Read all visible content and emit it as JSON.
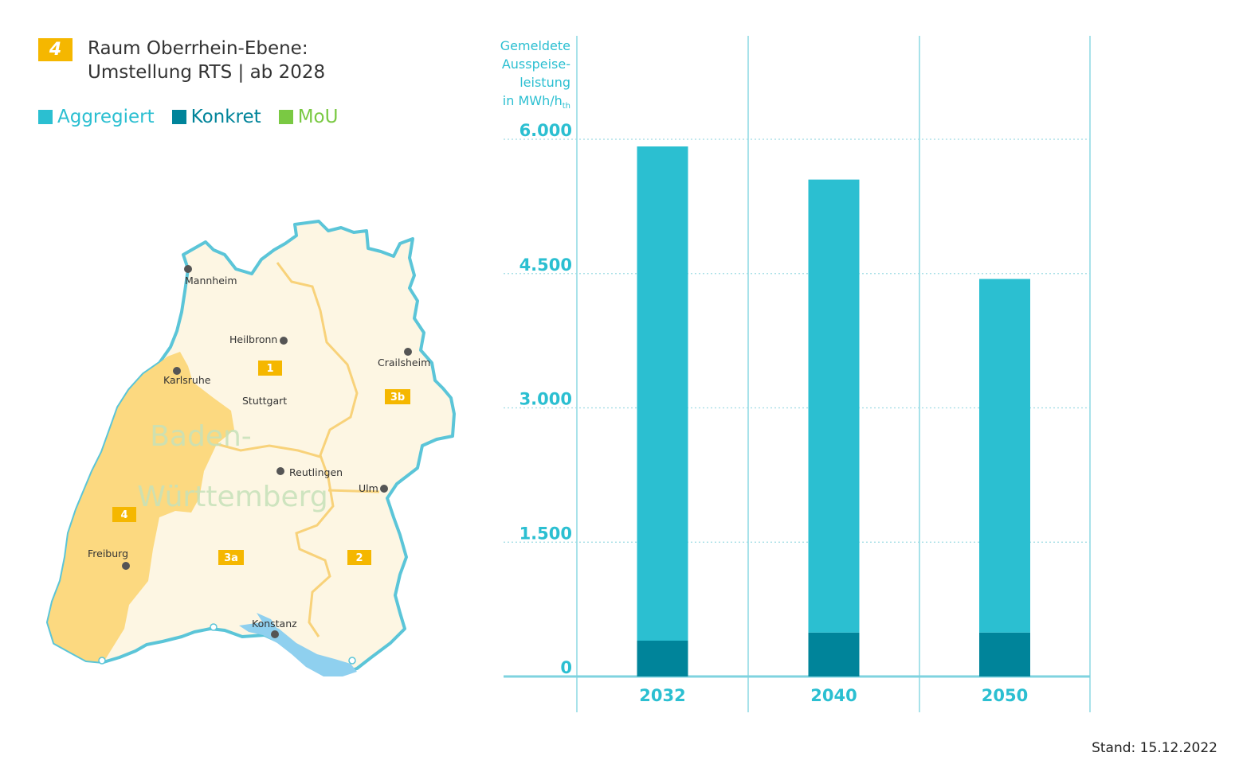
{
  "header": {
    "region_number": "4",
    "title_line1": "Raum Oberrhein-Ebene:",
    "title_line2": "Umstellung RTS | ab 2028"
  },
  "legend": [
    {
      "label": "Aggregiert",
      "color": "#2bbfd1"
    },
    {
      "label": "Konkret",
      "color": "#00849a"
    },
    {
      "label": "MoU",
      "color": "#7ac943"
    }
  ],
  "map": {
    "state_label_line1": "Baden-",
    "state_label_line2": "Württemberg",
    "cities": [
      "Mannheim",
      "Heilbronn",
      "Karlsruhe",
      "Stuttgart",
      "Crailsheim",
      "Reutlingen",
      "Ulm",
      "Freiburg",
      "Konstanz"
    ],
    "regions": [
      "1",
      "2",
      "3a",
      "3b",
      "4"
    ],
    "colors": {
      "land": "#fdf6e3",
      "highlight": "#fcd980",
      "border": "#5bc5d8",
      "region_border": "#f8d27a",
      "lake": "#8fd0ef",
      "badge": "#f5b700"
    }
  },
  "chart_data": {
    "type": "bar",
    "ylabel_line1": "Gemeldete",
    "ylabel_line2": "Ausspeise-",
    "ylabel_line3": "leistung",
    "ylabel_line4": "in MWh/h",
    "ylabel_subscript": "th",
    "yticks": [
      "6.000",
      "4.500",
      "3.000",
      "1.500",
      "0"
    ],
    "ytick_values": [
      6000,
      4500,
      3000,
      1500,
      0
    ],
    "ylim": [
      0,
      6000
    ],
    "categories": [
      "2032",
      "2040",
      "2050"
    ],
    "series": [
      {
        "name": "Konkret",
        "values": [
          400,
          490,
          490
        ],
        "color": "#00849a"
      },
      {
        "name": "Aggregiert",
        "values": [
          5520,
          5060,
          3950
        ],
        "color": "#2bbfd1"
      }
    ],
    "grid": true
  },
  "footer": {
    "stand": "Stand: 15.12.2022"
  }
}
